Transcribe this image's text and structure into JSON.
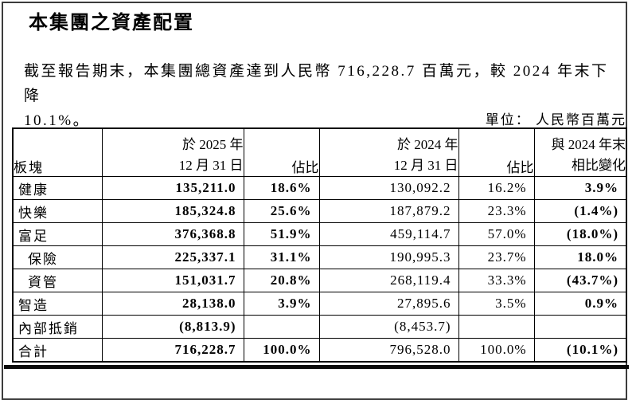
{
  "page": {
    "title": "本集團之資產配置",
    "intro_line1": "截至報告期末，本集團總資產達到人民幣 716,228.7 百萬元，較 2024 年末下降",
    "intro_line2": "10.1%。",
    "unit_label": "單位： 人民幣百萬元"
  },
  "colors": {
    "text": "#000000",
    "table_border": "#000000",
    "page_frame_border": "#3c3c3c",
    "background": "#ffffff"
  },
  "table": {
    "headers": {
      "sector": "板塊",
      "date_2025_line1": "於 2025 年",
      "date_2025_line2": "12 月 31 日",
      "share_2025": "佔比",
      "date_2024_line1": "於 2024 年",
      "date_2024_line2": "12 月 31 日",
      "share_2024": "佔比",
      "change_line1": "與 2024 年末",
      "change_line2": "相比變化"
    },
    "rows": [
      {
        "label": "健康",
        "indent": false,
        "value_2025": "135,211.0",
        "share_2025": "18.6%",
        "value_2024": "130,092.2",
        "share_2024": "16.2%",
        "change": "3.9%"
      },
      {
        "label": "快樂",
        "indent": false,
        "value_2025": "185,324.8",
        "share_2025": "25.6%",
        "value_2024": "187,879.2",
        "share_2024": "23.3%",
        "change": "(1.4%)"
      },
      {
        "label": "富足",
        "indent": false,
        "value_2025": "376,368.8",
        "share_2025": "51.9%",
        "value_2024": "459,114.7",
        "share_2024": "57.0%",
        "change": "(18.0%)"
      },
      {
        "label": "保險",
        "indent": true,
        "value_2025": "225,337.1",
        "share_2025": "31.1%",
        "value_2024": "190,995.3",
        "share_2024": "23.7%",
        "change": "18.0%"
      },
      {
        "label": "資管",
        "indent": true,
        "value_2025": "151,031.7",
        "share_2025": "20.8%",
        "value_2024": "268,119.4",
        "share_2024": "33.3%",
        "change": "(43.7%)"
      },
      {
        "label": "智造",
        "indent": false,
        "value_2025": "28,138.0",
        "share_2025": "3.9%",
        "value_2024": "27,895.6",
        "share_2024": "3.5%",
        "change": "0.9%"
      },
      {
        "label": "內部抵銷",
        "indent": false,
        "value_2025": "(8,813.9)",
        "share_2025": "",
        "value_2024": "(8,453.7)",
        "share_2024": "",
        "change": ""
      },
      {
        "label": "合計",
        "indent": false,
        "value_2025": "716,228.7",
        "share_2025": "100.0%",
        "value_2024": "796,528.0",
        "share_2024": "100.0%",
        "change": "(10.1%)"
      }
    ]
  }
}
